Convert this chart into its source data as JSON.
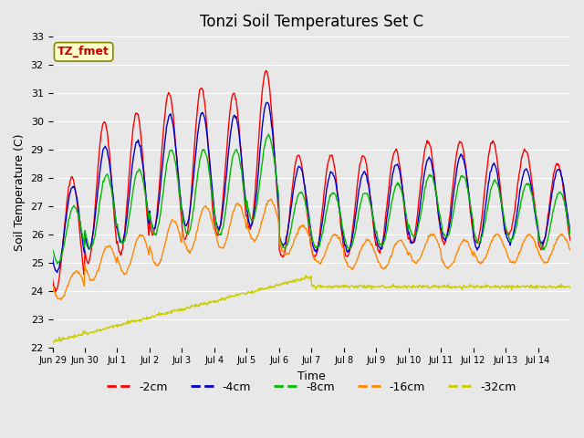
{
  "title": "Tonzi Soil Temperatures Set C",
  "xlabel": "Time",
  "ylabel": "Soil Temperature (C)",
  "annotation": "TZ_fmet",
  "ylim": [
    22.0,
    33.0
  ],
  "yticks": [
    22.0,
    23.0,
    24.0,
    25.0,
    26.0,
    27.0,
    28.0,
    29.0,
    30.0,
    31.0,
    32.0,
    33.0
  ],
  "xtick_labels": [
    "Jun 29",
    "Jun 30",
    "Jul 1",
    "Jul 2",
    "Jul 3",
    "Jul 4",
    "Jul 5",
    "Jul 6",
    "Jul 7",
    "Jul 8",
    "Jul 9",
    "Jul 10",
    "Jul 11",
    "Jul 12",
    "Jul 13",
    "Jul 14"
  ],
  "legend_entries": [
    "-2cm",
    "-4cm",
    "-8cm",
    "-16cm",
    "-32cm"
  ],
  "line_colors": [
    "#ff0000",
    "#0000cc",
    "#00bb00",
    "#ff8800",
    "#cccc00"
  ],
  "background_color": "#e8e8e8",
  "plot_bg_color": "#e8e8e8",
  "annotation_bg": "#ffffcc",
  "annotation_fg": "#cc0000"
}
